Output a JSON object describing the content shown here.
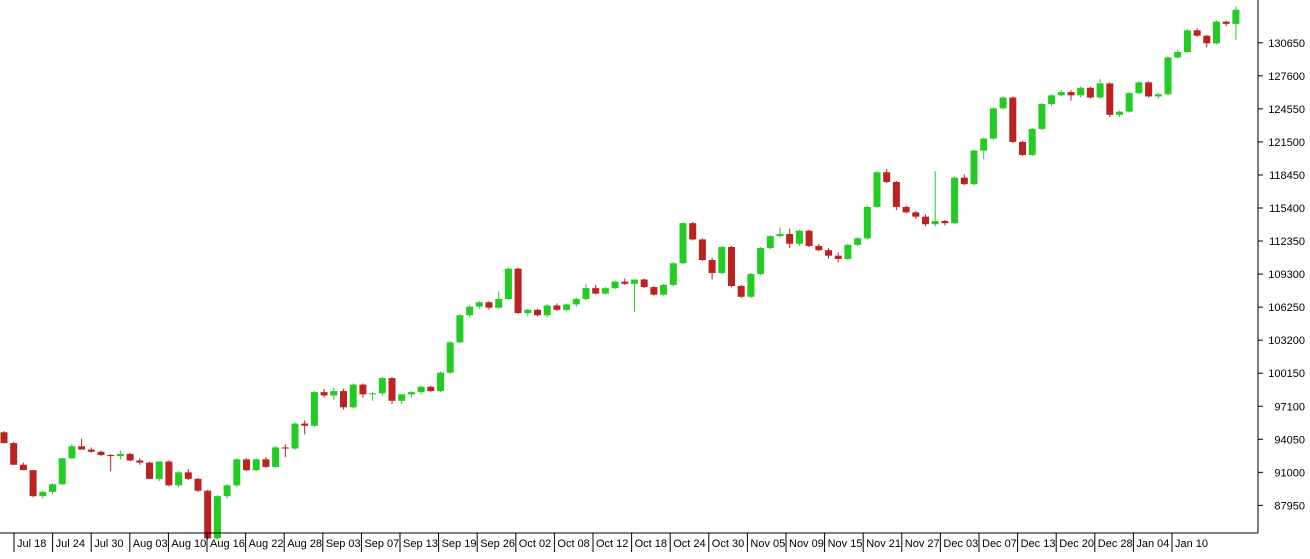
{
  "chart_data": {
    "type": "candlestick",
    "title": "",
    "xlabel": "",
    "ylabel": "",
    "ylim": [
      85400,
      134600
    ],
    "grid": false,
    "legend": "none",
    "y_axis_side": "right",
    "colors": {
      "up": "#22cc22",
      "down": "#bb2222",
      "axis": "#000000"
    },
    "y_ticks": [
      87950,
      91000,
      94050,
      97100,
      100150,
      103200,
      106250,
      109300,
      112350,
      115400,
      118450,
      121500,
      124550,
      127600,
      130650
    ],
    "x_tick_labels": [
      "Jul 18",
      "Jul 24",
      "Jul 30",
      "Aug 03",
      "Aug 10",
      "Aug 16",
      "Aug 22",
      "Aug 28",
      "Sep 03",
      "Sep 07",
      "Sep 13",
      "Sep 19",
      "Sep 26",
      "Oct 02",
      "Oct 08",
      "Oct 12",
      "Oct 18",
      "Oct 24",
      "Oct 30",
      "Nov 05",
      "Nov 09",
      "Nov 15",
      "Nov 21",
      "Nov 27",
      "Dec 03",
      "Dec 07",
      "Dec 13",
      "Dec 20",
      "Dec 28",
      "Jan 04",
      "Jan 10"
    ],
    "candles": [
      [
        94700,
        94800,
        93650,
        93700
      ],
      [
        93700,
        93800,
        91700,
        91700
      ],
      [
        91700,
        91900,
        91200,
        91200
      ],
      [
        91200,
        91200,
        88700,
        88800
      ],
      [
        88800,
        89300,
        88600,
        89200
      ],
      [
        89200,
        90000,
        89000,
        89900
      ],
      [
        89900,
        92300,
        89800,
        92300
      ],
      [
        92300,
        93600,
        92200,
        93400
      ],
      [
        93400,
        94100,
        93100,
        93100
      ],
      [
        93100,
        93300,
        92800,
        92900
      ],
      [
        92900,
        93000,
        92500,
        92600
      ],
      [
        92600,
        92700,
        91100,
        92500
      ],
      [
        92500,
        93000,
        92200,
        92700
      ],
      [
        92700,
        92800,
        92000,
        92100
      ],
      [
        92100,
        92300,
        91700,
        91900
      ],
      [
        91900,
        92000,
        90400,
        90400
      ],
      [
        90400,
        92000,
        90200,
        92000
      ],
      [
        92000,
        92100,
        89700,
        89800
      ],
      [
        89800,
        91100,
        89600,
        91000
      ],
      [
        91000,
        91300,
        90300,
        90400
      ],
      [
        90400,
        90500,
        89200,
        89300
      ],
      [
        89300,
        89400,
        84800,
        84900
      ],
      [
        84900,
        88900,
        84800,
        88800
      ],
      [
        88800,
        89900,
        88600,
        89800
      ],
      [
        89800,
        92300,
        89600,
        92200
      ],
      [
        92200,
        92300,
        91100,
        91200
      ],
      [
        91200,
        92300,
        91100,
        92200
      ],
      [
        92200,
        92400,
        91400,
        91500
      ],
      [
        91500,
        93400,
        91400,
        93300
      ],
      [
        93300,
        93600,
        92400,
        93200
      ],
      [
        93200,
        95600,
        93100,
        95500
      ],
      [
        95500,
        95800,
        94500,
        95300
      ],
      [
        95300,
        98500,
        95200,
        98400
      ],
      [
        98400,
        98700,
        97900,
        98100
      ],
      [
        98100,
        98800,
        97700,
        98500
      ],
      [
        98500,
        98700,
        96800,
        97000
      ],
      [
        97000,
        99200,
        96900,
        99100
      ],
      [
        99100,
        99200,
        97900,
        98200
      ],
      [
        98200,
        98400,
        97600,
        98300
      ],
      [
        98300,
        99800,
        98100,
        99700
      ],
      [
        99700,
        99800,
        97300,
        97600
      ],
      [
        97600,
        98200,
        97300,
        98200
      ],
      [
        98200,
        98500,
        97900,
        98400
      ],
      [
        98400,
        99000,
        98200,
        98900
      ],
      [
        98900,
        99000,
        98400,
        98500
      ],
      [
        98500,
        100300,
        98400,
        100200
      ],
      [
        100200,
        103100,
        100100,
        103000
      ],
      [
        103000,
        105600,
        102900,
        105500
      ],
      [
        105500,
        106400,
        105300,
        106300
      ],
      [
        106300,
        106800,
        106100,
        106700
      ],
      [
        106700,
        106800,
        106000,
        106200
      ],
      [
        106200,
        107700,
        106100,
        107000
      ],
      [
        107000,
        109900,
        106900,
        109800
      ],
      [
        109800,
        109900,
        105600,
        105700
      ],
      [
        105700,
        106100,
        105400,
        106000
      ],
      [
        106000,
        106100,
        105400,
        105500
      ],
      [
        105500,
        106500,
        105300,
        106400
      ],
      [
        106400,
        106600,
        105900,
        106000
      ],
      [
        106000,
        106600,
        105900,
        106500
      ],
      [
        106500,
        107100,
        106300,
        107000
      ],
      [
        107000,
        108400,
        106900,
        108000
      ],
      [
        108000,
        108300,
        107400,
        107500
      ],
      [
        107500,
        108100,
        107400,
        108000
      ],
      [
        108000,
        108700,
        107900,
        108600
      ],
      [
        108600,
        108900,
        108300,
        108400
      ],
      [
        108400,
        108800,
        105800,
        108800
      ],
      [
        108800,
        108900,
        108000,
        108100
      ],
      [
        108100,
        108200,
        107300,
        107400
      ],
      [
        107400,
        108400,
        107300,
        108300
      ],
      [
        108300,
        110400,
        108200,
        110300
      ],
      [
        110300,
        114100,
        110200,
        114000
      ],
      [
        114000,
        114100,
        112400,
        112500
      ],
      [
        112500,
        112600,
        110500,
        110600
      ],
      [
        110600,
        110800,
        108800,
        109400
      ],
      [
        109400,
        111900,
        109300,
        111800
      ],
      [
        111800,
        111900,
        108100,
        108200
      ],
      [
        108200,
        108300,
        107100,
        107200
      ],
      [
        107200,
        109400,
        107100,
        109300
      ],
      [
        109300,
        111800,
        109200,
        111700
      ],
      [
        111700,
        112900,
        111600,
        112800
      ],
      [
        112800,
        113600,
        112700,
        113000
      ],
      [
        113000,
        113500,
        111700,
        112100
      ],
      [
        112100,
        113400,
        111900,
        113300
      ],
      [
        113300,
        113400,
        111800,
        111900
      ],
      [
        111900,
        112100,
        111400,
        111500
      ],
      [
        111500,
        111700,
        110700,
        111000
      ],
      [
        111000,
        111300,
        110400,
        110700
      ],
      [
        110700,
        112100,
        110600,
        112000
      ],
      [
        112000,
        112700,
        111900,
        112600
      ],
      [
        112600,
        115600,
        112500,
        115500
      ],
      [
        115500,
        118800,
        115400,
        118700
      ],
      [
        118700,
        119000,
        117700,
        117800
      ],
      [
        117800,
        117900,
        115200,
        115500
      ],
      [
        115500,
        115600,
        114900,
        115000
      ],
      [
        115000,
        115100,
        114400,
        114600
      ],
      [
        114600,
        114800,
        113700,
        113900
      ],
      [
        113900,
        118800,
        113700,
        114200
      ],
      [
        114200,
        114300,
        113800,
        114000
      ],
      [
        114000,
        118300,
        113900,
        118200
      ],
      [
        118200,
        118500,
        117500,
        117600
      ],
      [
        117600,
        120800,
        117500,
        120700
      ],
      [
        120700,
        121900,
        119900,
        121800
      ],
      [
        121800,
        124700,
        121700,
        124600
      ],
      [
        124600,
        125700,
        124500,
        125600
      ],
      [
        125600,
        125700,
        121400,
        121500
      ],
      [
        121500,
        121600,
        120200,
        120300
      ],
      [
        120300,
        122800,
        120200,
        122700
      ],
      [
        122700,
        125100,
        122600,
        125000
      ],
      [
        125000,
        125900,
        124800,
        125800
      ],
      [
        125800,
        126300,
        125700,
        126100
      ],
      [
        126100,
        126300,
        125300,
        125800
      ],
      [
        125800,
        126600,
        125600,
        126500
      ],
      [
        126500,
        126600,
        125500,
        125600
      ],
      [
        125600,
        127300,
        125500,
        126900
      ],
      [
        126900,
        127000,
        123800,
        124000
      ],
      [
        124000,
        124400,
        123800,
        124300
      ],
      [
        124300,
        126100,
        124200,
        126000
      ],
      [
        126000,
        127100,
        125900,
        127000
      ],
      [
        127000,
        127100,
        125600,
        125700
      ],
      [
        125700,
        126000,
        125500,
        125900
      ],
      [
        125900,
        129400,
        125800,
        129300
      ],
      [
        129300,
        130000,
        129200,
        129800
      ],
      [
        129800,
        131900,
        129700,
        131800
      ],
      [
        131800,
        132000,
        131200,
        131300
      ],
      [
        131300,
        131400,
        130200,
        130600
      ],
      [
        130600,
        132700,
        130500,
        132600
      ],
      [
        132600,
        132700,
        132200,
        132400
      ],
      [
        132400,
        134000,
        130900,
        133700
      ]
    ]
  }
}
